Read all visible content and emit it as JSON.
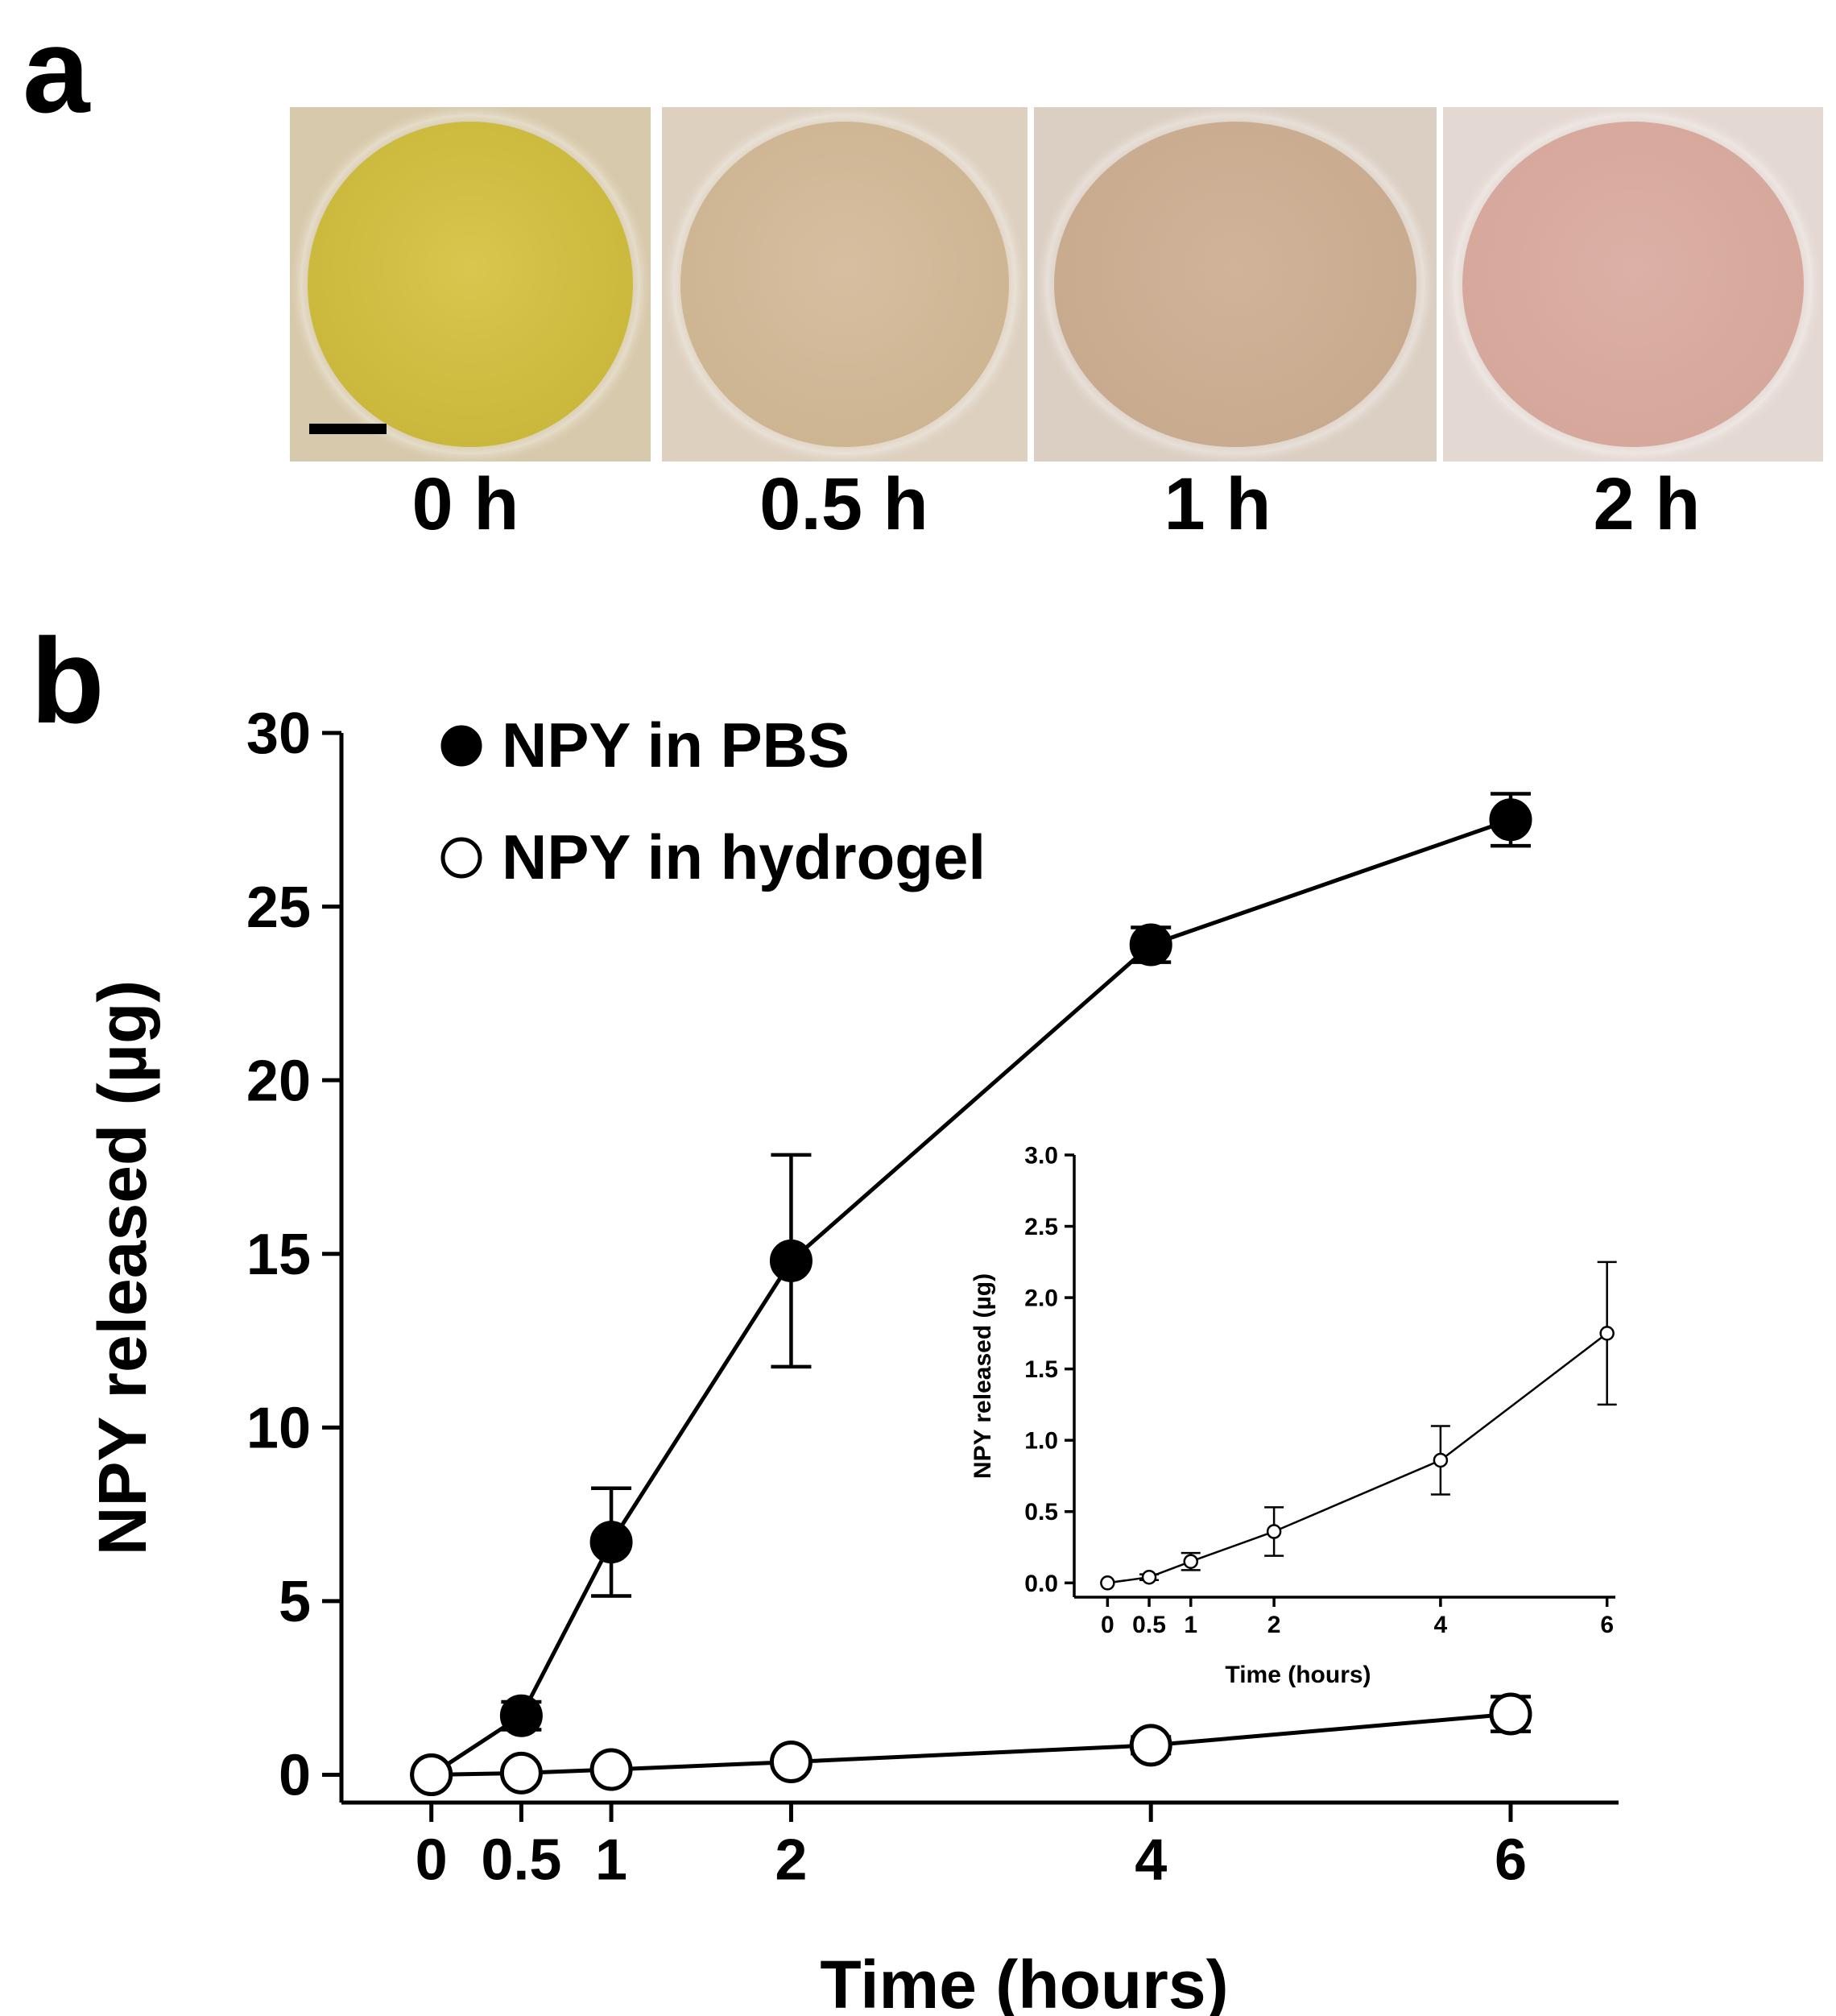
{
  "panel_a": {
    "letter": "a",
    "photos": [
      {
        "label": "0 h",
        "color_base": "#c9b83b",
        "color_center": "#d9c64e",
        "bg": "#d7c9ab"
      },
      {
        "label": "0.5 h",
        "color_base": "#cdb592",
        "color_center": "#d6bea0",
        "bg": "#ddd0bf"
      },
      {
        "label": "1 h",
        "color_base": "#c8aa8e",
        "color_center": "#d1b39a",
        "bg": "#dbcfc3"
      },
      {
        "label": "2 h",
        "color_base": "#d6a79b",
        "color_center": "#dcb0a6",
        "bg": "#e4d8d2"
      }
    ]
  },
  "panel_b": {
    "letter": "b"
  },
  "chart_data": [
    {
      "type": "line",
      "title": "",
      "xlabel": "Time (hours)",
      "ylabel": "NPY released (µg)",
      "xlim": [
        -0.5,
        6.6
      ],
      "ylim": [
        -0.8,
        30
      ],
      "x_ticks": [
        0,
        0.5,
        1,
        2,
        4,
        6
      ],
      "x_tick_labels": [
        "0",
        "0.5",
        "1",
        "2",
        "4",
        "6"
      ],
      "y_ticks": [
        0,
        5,
        10,
        15,
        20,
        25,
        30
      ],
      "y_tick_labels": [
        "0",
        "5",
        "10",
        "15",
        "20",
        "25",
        "30"
      ],
      "grid": false,
      "legend_placement": "top-left",
      "series": [
        {
          "name": "NPY in PBS",
          "marker": "filled",
          "x": [
            0,
            0.5,
            1,
            2,
            4,
            6
          ],
          "y": [
            0,
            1.7,
            6.7,
            14.8,
            23.9,
            27.5
          ],
          "err": [
            0,
            0.4,
            1.55,
            3.05,
            0.5,
            0.75
          ]
        },
        {
          "name": "NPY in hydrogel",
          "marker": "open",
          "x": [
            0,
            0.5,
            1,
            2,
            4,
            6
          ],
          "y": [
            0,
            0.05,
            0.15,
            0.37,
            0.85,
            1.75
          ],
          "err": [
            0,
            0.02,
            0.06,
            0.17,
            0.24,
            0.5
          ]
        }
      ]
    },
    {
      "type": "line",
      "title": "",
      "xlabel": "Time (hours)",
      "ylabel": "NPY released (µg)",
      "xlim": [
        -0.4,
        6.1
      ],
      "ylim": [
        -0.1,
        3.0
      ],
      "x_ticks": [
        0,
        0.5,
        1,
        2,
        4,
        6
      ],
      "x_tick_labels": [
        "0",
        "0.5",
        "1",
        "2",
        "4",
        "6"
      ],
      "y_ticks": [
        0,
        0.5,
        1.0,
        1.5,
        2.0,
        2.5,
        3.0
      ],
      "y_tick_labels": [
        "0.0",
        "0.5",
        "1.0",
        "1.5",
        "2.0",
        "2.5",
        "3.0"
      ],
      "grid": false,
      "series": [
        {
          "marker": "open",
          "x": [
            0,
            0.5,
            1,
            2,
            4,
            6
          ],
          "y": [
            0,
            0.04,
            0.15,
            0.36,
            0.86,
            1.75
          ],
          "err": [
            0,
            0.02,
            0.06,
            0.17,
            0.24,
            0.5
          ]
        }
      ]
    }
  ]
}
